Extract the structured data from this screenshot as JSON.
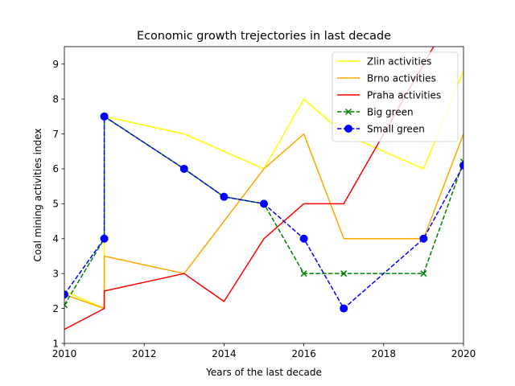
{
  "chart_data": {
    "type": "line",
    "title": "Economic growth trejectories in last decade",
    "xlabel": "Years of the last decade",
    "ylabel": "Coal mining activities index",
    "xlim": [
      2010,
      2020
    ],
    "ylim": [
      1,
      9.5
    ],
    "xticks": [
      2010,
      2012,
      2014,
      2016,
      2018,
      2020
    ],
    "yticks": [
      1,
      2,
      3,
      4,
      5,
      6,
      7,
      8,
      9
    ],
    "grid": false,
    "legend_position": "top-right",
    "series": [
      {
        "name": "Zlin activities",
        "color": "#ffff00",
        "dashed": false,
        "marker": "none",
        "points": [
          [
            2010,
            2.5
          ],
          [
            2011,
            2.0
          ],
          [
            2011,
            7.5
          ],
          [
            2013,
            7.0
          ],
          [
            2015,
            6.0
          ],
          [
            2016,
            8.0
          ],
          [
            2017,
            7.0
          ],
          [
            2019,
            6.0
          ],
          [
            2020,
            8.8
          ]
        ]
      },
      {
        "name": "Brno activities",
        "color": "#ffa500",
        "dashed": false,
        "marker": "none",
        "points": [
          [
            2010,
            2.4
          ],
          [
            2011,
            2.0
          ],
          [
            2011,
            3.5
          ],
          [
            2013,
            3.0
          ],
          [
            2015,
            6.0
          ],
          [
            2016,
            7.0
          ],
          [
            2017,
            4.0
          ],
          [
            2019,
            4.0
          ],
          [
            2020,
            7.0
          ]
        ]
      },
      {
        "name": "Praha activities",
        "color": "#ff0000",
        "dashed": false,
        "marker": "none",
        "points": [
          [
            2010,
            1.4
          ],
          [
            2011,
            2.0
          ],
          [
            2011,
            2.5
          ],
          [
            2013,
            3.0
          ],
          [
            2014,
            2.2
          ],
          [
            2015,
            4.0
          ],
          [
            2016,
            5.0
          ],
          [
            2017,
            5.0
          ],
          [
            2020,
            11.0
          ]
        ]
      },
      {
        "name": "Big green",
        "color": "#008000",
        "dashed": true,
        "marker": "x",
        "points": [
          [
            2010,
            2.1
          ],
          [
            2011,
            4.0
          ],
          [
            2011,
            7.5
          ],
          [
            2013,
            6.0
          ],
          [
            2014,
            5.2
          ],
          [
            2015,
            5.0
          ],
          [
            2016,
            3.0
          ],
          [
            2017,
            3.0
          ],
          [
            2019,
            3.0
          ],
          [
            2020,
            6.2
          ]
        ]
      },
      {
        "name": "Small green",
        "color": "#0000ff",
        "dashed": true,
        "marker": "o",
        "points": [
          [
            2010,
            2.4
          ],
          [
            2011,
            4.0
          ],
          [
            2011,
            7.5
          ],
          [
            2013,
            6.0
          ],
          [
            2014,
            5.2
          ],
          [
            2015,
            5.0
          ],
          [
            2016,
            4.0
          ],
          [
            2017,
            2.0
          ],
          [
            2019,
            4.0
          ],
          [
            2020,
            6.1
          ]
        ]
      }
    ]
  }
}
